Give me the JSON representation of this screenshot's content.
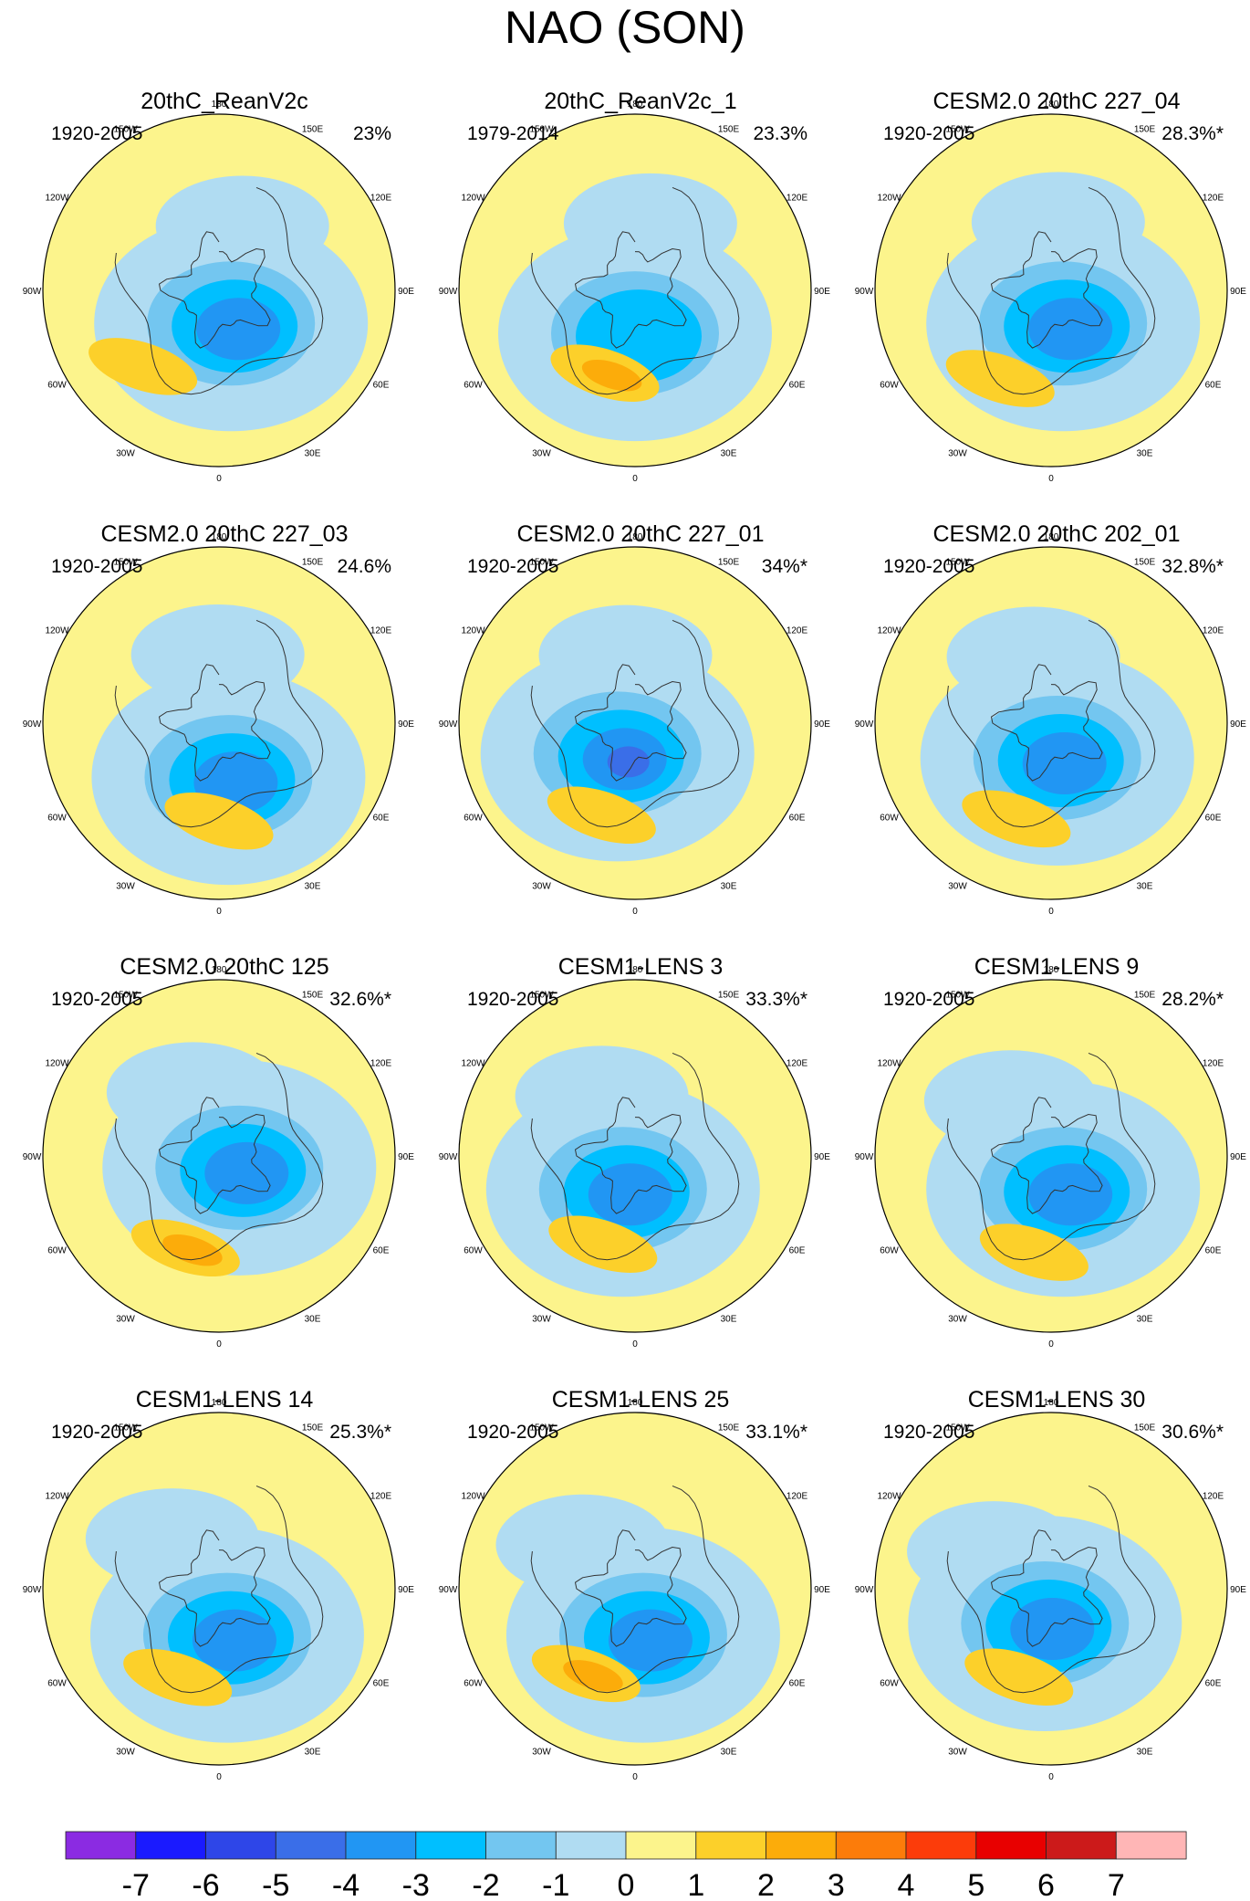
{
  "title": "NAO (SON)",
  "colors": {
    "-7": "#8b2be2",
    "-6": "#1a1aff",
    "-5": "#2e46e8",
    "-4": "#3a6ee8",
    "-3": "#2196f3",
    "-2": "#00bfff",
    "-1": "#73c6f0",
    "0": "#b0dcf2",
    "1": "#fcf48c",
    "2": "#fcd02a",
    "3": "#fcac0a",
    "4": "#fc7c0a",
    "5": "#fc3c0a",
    "6": "#e80000",
    "7": "#cc1a1a",
    "8": "#ffb6b6"
  },
  "land_color": "#333333",
  "chart_data": {
    "type": "polar-contour-panels",
    "title": "NAO (SON)",
    "projection": "north polar stereographic",
    "longitude_labels": [
      "180",
      "150E",
      "120E",
      "90E",
      "60E",
      "30E",
      "0",
      "30W",
      "60W",
      "90W",
      "120W",
      "150W"
    ],
    "colorbar": {
      "tick_labels": [
        "-7",
        "-6",
        "-5",
        "-4",
        "-3",
        "-2",
        "-1",
        "0",
        "1",
        "2",
        "3",
        "4",
        "5",
        "6",
        "7"
      ],
      "levels": [
        -7,
        -6,
        -5,
        -4,
        -3,
        -2,
        -1,
        0,
        1,
        2,
        3,
        4,
        5,
        6,
        7
      ],
      "bins": 16
    },
    "panels": [
      {
        "title": "20thC_ReanV2c",
        "period": "1920-2005",
        "variance": "23%",
        "neg_min": -3,
        "pos_max": 2,
        "neg_lon": 20,
        "neg_lat": 72,
        "pos_lon": -45,
        "pos_lat": 35
      },
      {
        "title": "20thC_ReanV2c_1",
        "period": "1979-2014",
        "variance": "23.3%",
        "neg_min": -2,
        "pos_max": 3,
        "neg_lon": 0,
        "neg_lat": 68,
        "pos_lon": -20,
        "pos_lat": 45
      },
      {
        "title": "CESM2.0 20thC 227_04",
        "period": "1920-2005",
        "variance": "28.3%*",
        "neg_min": -3,
        "pos_max": 2,
        "neg_lon": 20,
        "neg_lat": 72,
        "pos_lon": -30,
        "pos_lat": 38
      },
      {
        "title": "CESM2.0 20thC 227_03",
        "period": "1920-2005",
        "variance": "24.6%",
        "neg_min": -3,
        "pos_max": 2,
        "neg_lon": 10,
        "neg_lat": 62,
        "pos_lon": 0,
        "pos_lat": 40
      },
      {
        "title": "CESM2.0 20thC 227_01",
        "period": "1920-2005",
        "variance": "34%*",
        "neg_min": -4,
        "pos_max": 2,
        "neg_lon": -30,
        "neg_lat": 72,
        "pos_lon": -20,
        "pos_lat": 40
      },
      {
        "title": "CESM2.0 20thC 202_01",
        "period": "1920-2005",
        "variance": "32.8%*",
        "neg_min": -3,
        "pos_max": 2,
        "neg_lon": 10,
        "neg_lat": 72,
        "pos_lon": -20,
        "pos_lat": 38
      },
      {
        "title": "CESM2.0 20thC 125",
        "period": "1920-2005",
        "variance": "32.6%*",
        "neg_min": -3,
        "pos_max": 3,
        "neg_lon": 60,
        "neg_lat": 78,
        "pos_lon": -20,
        "pos_lat": 40
      },
      {
        "title": "CESM1-LENS 3",
        "period": "1920-2005",
        "variance": "33.3%*",
        "neg_min": -3,
        "pos_max": 2,
        "neg_lon": -20,
        "neg_lat": 72,
        "pos_lon": -20,
        "pos_lat": 42
      },
      {
        "title": "CESM1-LENS 9",
        "period": "1920-2005",
        "variance": "28.2%*",
        "neg_min": -3,
        "pos_max": 2,
        "neg_lon": 20,
        "neg_lat": 72,
        "pos_lon": -10,
        "pos_lat": 40
      },
      {
        "title": "CESM1-LENS 14",
        "period": "1920-2005",
        "variance": "25.3%*",
        "neg_min": -3,
        "pos_max": 2,
        "neg_lon": 10,
        "neg_lat": 66,
        "pos_lon": -25,
        "pos_lat": 40
      },
      {
        "title": "CESM1-LENS 25",
        "period": "1920-2005",
        "variance": "33.1%*",
        "neg_min": -3,
        "pos_max": 3,
        "neg_lon": 10,
        "neg_lat": 66,
        "pos_lon": -30,
        "pos_lat": 40
      },
      {
        "title": "CESM1-LENS 30",
        "period": "1920-2005",
        "variance": "30.6%*",
        "neg_min": -3,
        "pos_max": 2,
        "neg_lon": -10,
        "neg_lat": 72,
        "pos_lon": -20,
        "pos_lat": 42
      }
    ]
  }
}
